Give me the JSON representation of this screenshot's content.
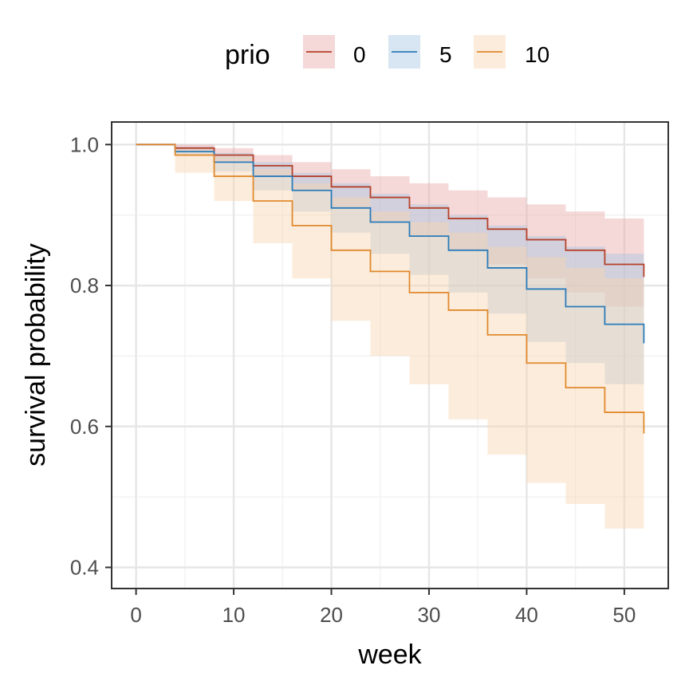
{
  "chart_data": {
    "type": "line",
    "xlabel": "week",
    "ylabel": "survival probability",
    "xlim": [
      -2.5,
      54.5
    ],
    "ylim": [
      0.37,
      1.032
    ],
    "x_ticks": [
      0,
      10,
      20,
      30,
      40,
      50
    ],
    "x_tick_labels": [
      "0",
      "10",
      "20",
      "30",
      "40",
      "50"
    ],
    "y_ticks": [
      0.4,
      0.6,
      0.8,
      1.0
    ],
    "y_tick_labels": [
      "0.4",
      "0.6",
      "0.8",
      "1.0"
    ],
    "grid": true,
    "legend": {
      "title": "prio",
      "position": "top"
    },
    "series": [
      {
        "name": "0",
        "color": "#b5402b",
        "fill": "#e8a8a8",
        "x": [
          0,
          4,
          8,
          12,
          16,
          20,
          24,
          28,
          32,
          36,
          40,
          44,
          48,
          52
        ],
        "y": [
          1.0,
          0.995,
          0.985,
          0.97,
          0.955,
          0.94,
          0.925,
          0.91,
          0.895,
          0.88,
          0.865,
          0.85,
          0.83,
          0.812
        ],
        "lower": [
          1.0,
          0.99,
          0.975,
          0.955,
          0.935,
          0.91,
          0.89,
          0.87,
          0.85,
          0.83,
          0.81,
          0.79,
          0.77,
          0.745
        ],
        "upper": [
          1.0,
          1.0,
          0.995,
          0.985,
          0.975,
          0.965,
          0.955,
          0.945,
          0.935,
          0.925,
          0.915,
          0.905,
          0.895,
          0.893
        ]
      },
      {
        "name": "5",
        "color": "#2b7bb9",
        "fill": "#a6c8e3",
        "x": [
          0,
          4,
          8,
          12,
          16,
          20,
          24,
          28,
          32,
          36,
          40,
          44,
          48,
          52
        ],
        "y": [
          1.0,
          0.99,
          0.975,
          0.955,
          0.935,
          0.91,
          0.89,
          0.87,
          0.85,
          0.825,
          0.795,
          0.77,
          0.745,
          0.718
        ],
        "lower": [
          1.0,
          0.985,
          0.962,
          0.935,
          0.905,
          0.875,
          0.845,
          0.815,
          0.79,
          0.76,
          0.72,
          0.69,
          0.66,
          0.63
        ],
        "upper": [
          1.0,
          0.997,
          0.988,
          0.975,
          0.96,
          0.945,
          0.93,
          0.915,
          0.9,
          0.885,
          0.87,
          0.855,
          0.845,
          0.838
        ]
      },
      {
        "name": "10",
        "color": "#e0892f",
        "fill": "#f9d5b0",
        "x": [
          0,
          4,
          8,
          12,
          16,
          20,
          24,
          28,
          32,
          36,
          40,
          44,
          48,
          52
        ],
        "y": [
          1.0,
          0.985,
          0.955,
          0.92,
          0.885,
          0.85,
          0.82,
          0.79,
          0.765,
          0.73,
          0.69,
          0.655,
          0.62,
          0.59
        ],
        "lower": [
          1.0,
          0.96,
          0.92,
          0.86,
          0.81,
          0.75,
          0.7,
          0.66,
          0.61,
          0.56,
          0.52,
          0.49,
          0.455,
          0.443
        ],
        "upper": [
          1.0,
          0.995,
          0.985,
          0.965,
          0.945,
          0.925,
          0.905,
          0.89,
          0.875,
          0.855,
          0.84,
          0.825,
          0.81,
          0.8
        ]
      }
    ]
  }
}
